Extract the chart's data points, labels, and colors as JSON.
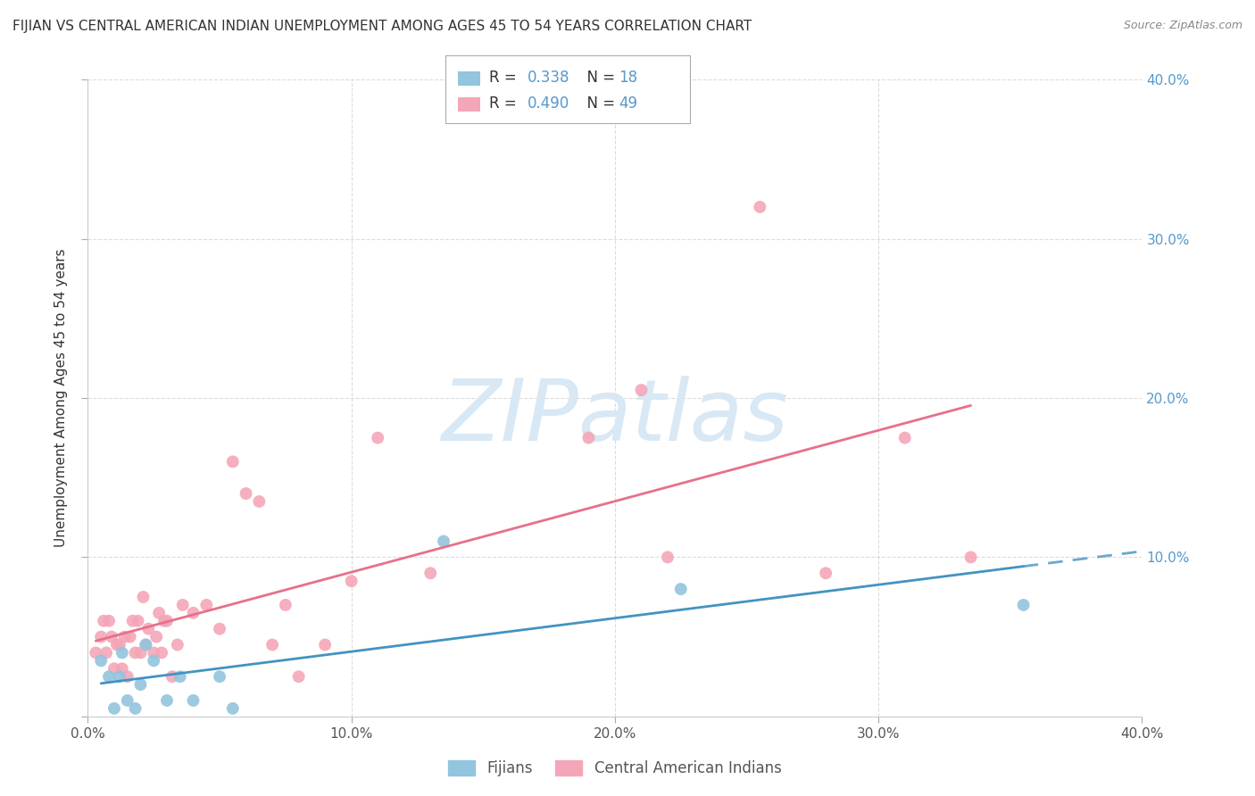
{
  "title": "FIJIAN VS CENTRAL AMERICAN INDIAN UNEMPLOYMENT AMONG AGES 45 TO 54 YEARS CORRELATION CHART",
  "source": "Source: ZipAtlas.com",
  "ylabel": "Unemployment Among Ages 45 to 54 years",
  "xlim": [
    0.0,
    0.4
  ],
  "ylim": [
    0.0,
    0.4
  ],
  "xticks": [
    0.0,
    0.1,
    0.2,
    0.3,
    0.4
  ],
  "yticks": [
    0.0,
    0.1,
    0.2,
    0.3,
    0.4
  ],
  "xticklabels": [
    "0.0%",
    "10.0%",
    "20.0%",
    "30.0%",
    "40.0%"
  ],
  "right_yticklabels": [
    "",
    "10.0%",
    "20.0%",
    "30.0%",
    "40.0%"
  ],
  "legend_labels": [
    "Fijians",
    "Central American Indians"
  ],
  "fijian_color": "#92c5de",
  "ca_indian_color": "#f4a6b8",
  "fijian_line_color": "#4393c3",
  "ca_indian_line_color": "#e8708a",
  "fijian_R": 0.338,
  "fijian_N": 18,
  "ca_indian_R": 0.49,
  "ca_indian_N": 49,
  "background_color": "#ffffff",
  "grid_color": "#cccccc",
  "title_color": "#333333",
  "source_color": "#888888",
  "ylabel_color": "#333333",
  "tick_color": "#555555",
  "right_tick_color": "#5599cc",
  "legend_R_color": "#5599cc",
  "legend_text_color": "#333333",
  "title_fontsize": 11,
  "source_fontsize": 9,
  "axis_label_fontsize": 11,
  "tick_fontsize": 11,
  "legend_fontsize": 12,
  "watermark_color": "#d8e8f4",
  "fijian_x": [
    0.005,
    0.008,
    0.01,
    0.012,
    0.013,
    0.015,
    0.018,
    0.02,
    0.022,
    0.025,
    0.03,
    0.035,
    0.04,
    0.05,
    0.055,
    0.135,
    0.225,
    0.355
  ],
  "fijian_y": [
    0.035,
    0.025,
    0.005,
    0.025,
    0.04,
    0.01,
    0.005,
    0.02,
    0.045,
    0.035,
    0.01,
    0.025,
    0.01,
    0.025,
    0.005,
    0.11,
    0.08,
    0.07
  ],
  "ca_x": [
    0.003,
    0.005,
    0.006,
    0.007,
    0.008,
    0.009,
    0.01,
    0.011,
    0.012,
    0.013,
    0.014,
    0.015,
    0.016,
    0.017,
    0.018,
    0.019,
    0.02,
    0.021,
    0.022,
    0.023,
    0.025,
    0.026,
    0.027,
    0.028,
    0.029,
    0.03,
    0.032,
    0.034,
    0.036,
    0.04,
    0.045,
    0.05,
    0.055,
    0.06,
    0.065,
    0.07,
    0.075,
    0.08,
    0.09,
    0.1,
    0.11,
    0.13,
    0.19,
    0.21,
    0.22,
    0.255,
    0.28,
    0.31,
    0.335
  ],
  "ca_y": [
    0.04,
    0.05,
    0.06,
    0.04,
    0.06,
    0.05,
    0.03,
    0.045,
    0.045,
    0.03,
    0.05,
    0.025,
    0.05,
    0.06,
    0.04,
    0.06,
    0.04,
    0.075,
    0.045,
    0.055,
    0.04,
    0.05,
    0.065,
    0.04,
    0.06,
    0.06,
    0.025,
    0.045,
    0.07,
    0.065,
    0.07,
    0.055,
    0.16,
    0.14,
    0.135,
    0.045,
    0.07,
    0.025,
    0.045,
    0.085,
    0.175,
    0.09,
    0.175,
    0.205,
    0.1,
    0.32,
    0.09,
    0.175,
    0.1
  ]
}
